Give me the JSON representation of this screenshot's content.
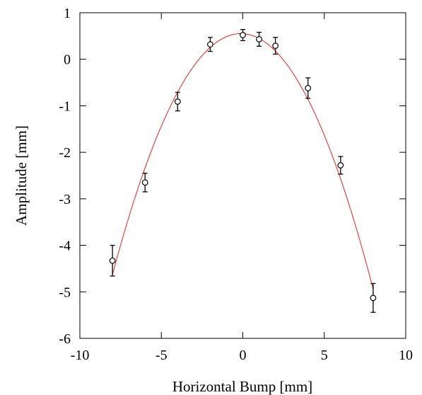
{
  "chart_data": {
    "type": "scatter",
    "title": "",
    "xlabel": "Horizontal Bump [mm]",
    "ylabel": "Amplitude [mm]",
    "xlim": [
      -10,
      10
    ],
    "ylim": [
      -6,
      1
    ],
    "x_ticks": [
      -10,
      -5,
      0,
      5,
      10
    ],
    "y_ticks": [
      1,
      0,
      -1,
      -2,
      -3,
      -4,
      -5,
      -6
    ],
    "x_tick_labels": [
      "-10",
      "-5",
      "0",
      "5",
      "10"
    ],
    "y_tick_labels": [
      "1",
      "0",
      "-1",
      "-2",
      "-3",
      "-4",
      "-5",
      "-6"
    ],
    "grid": false,
    "legend": "none",
    "series": [
      {
        "kind": "points-with-error-bars",
        "color": "#000000",
        "marker": "open-circle",
        "x": [
          -8,
          -6,
          -4,
          -2,
          0,
          1,
          2,
          4,
          6,
          8
        ],
        "y": [
          -4.33,
          -2.65,
          -0.91,
          0.32,
          0.52,
          0.43,
          0.29,
          -0.62,
          -2.28,
          -5.13
        ],
        "yerr": [
          0.33,
          0.2,
          0.2,
          0.15,
          0.12,
          0.15,
          0.18,
          0.22,
          0.19,
          0.31
        ]
      },
      {
        "kind": "fit-curve",
        "color": "#e8201a",
        "model": "quadratic",
        "coefficients": {
          "a": -0.0834,
          "b": -0.0195,
          "c": 0.55
        },
        "x_range": [
          -8,
          8
        ]
      }
    ]
  }
}
